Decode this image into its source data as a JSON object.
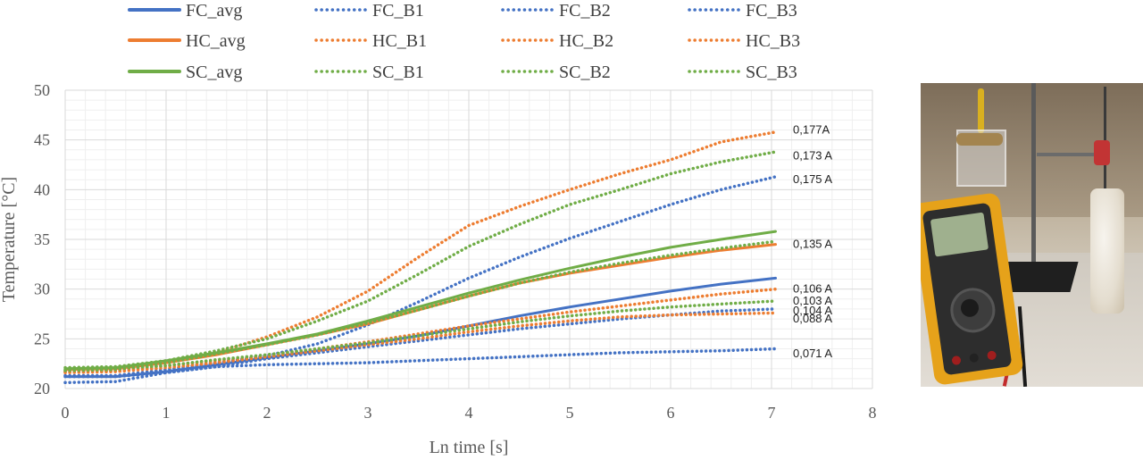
{
  "chart_data": {
    "type": "line",
    "xlabel": "Ln time [s]",
    "ylabel": "Temperature [°C]",
    "xlim": [
      0,
      8
    ],
    "ylim": [
      20,
      50
    ],
    "xticks": [
      0,
      1,
      2,
      3,
      4,
      5,
      6,
      7,
      8
    ],
    "yticks": [
      20,
      25,
      30,
      35,
      40,
      45,
      50
    ],
    "grid": true,
    "legend_position": "top",
    "colors": {
      "FC": "#4472C4",
      "HC": "#ED7D31",
      "SC": "#70AD47"
    },
    "series": [
      {
        "name": "FC_avg",
        "group": "FC",
        "style": "solid",
        "x": [
          0,
          0.5,
          1,
          1.5,
          2,
          2.5,
          3,
          3.5,
          4,
          4.5,
          5,
          5.5,
          6,
          6.5,
          7.04
        ],
        "y": [
          21.2,
          21.2,
          21.7,
          22.4,
          23.1,
          23.8,
          24.5,
          25.3,
          26.3,
          27.3,
          28.2,
          29.0,
          29.8,
          30.5,
          31.1
        ]
      },
      {
        "name": "FC_B1",
        "group": "FC",
        "style": "dotted",
        "x": [
          0,
          0.5,
          1,
          1.5,
          2,
          2.5,
          3,
          3.5,
          4,
          4.5,
          5,
          5.5,
          6,
          6.5,
          7.04
        ],
        "y": [
          20.6,
          20.7,
          21.6,
          22.2,
          22.4,
          22.5,
          22.6,
          22.8,
          23.0,
          23.2,
          23.4,
          23.6,
          23.7,
          23.8,
          24.0
        ]
      },
      {
        "name": "FC_B2",
        "group": "FC",
        "style": "dotted",
        "x": [
          0,
          0.5,
          1,
          1.5,
          2,
          2.5,
          3,
          3.5,
          4,
          4.5,
          5,
          5.5,
          6,
          6.5,
          7.04
        ],
        "y": [
          21.3,
          21.3,
          21.9,
          22.6,
          23.3,
          24.5,
          26.4,
          28.7,
          31.1,
          33.2,
          35.1,
          36.8,
          38.5,
          40.0,
          41.3
        ]
      },
      {
        "name": "FC_B3",
        "group": "FC",
        "style": "dotted",
        "x": [
          0,
          0.5,
          1,
          1.5,
          2,
          2.5,
          3,
          3.5,
          4,
          4.5,
          5,
          5.5,
          6,
          6.5,
          7.04
        ],
        "y": [
          21.2,
          21.2,
          21.6,
          22.2,
          23.0,
          23.6,
          24.2,
          24.8,
          25.4,
          26.0,
          26.5,
          27.0,
          27.4,
          27.8,
          28.0
        ]
      },
      {
        "name": "HC_avg",
        "group": "HC",
        "style": "solid",
        "x": [
          0,
          0.5,
          1,
          1.5,
          2,
          2.5,
          3,
          3.5,
          4,
          4.5,
          5,
          5.5,
          6,
          6.5,
          7.04
        ],
        "y": [
          21.9,
          22.0,
          22.6,
          23.4,
          24.4,
          25.4,
          26.5,
          27.9,
          29.3,
          30.6,
          31.6,
          32.4,
          33.2,
          33.9,
          34.5
        ]
      },
      {
        "name": "HC_B1",
        "group": "HC",
        "style": "dotted",
        "x": [
          0,
          0.5,
          1,
          1.5,
          2,
          2.5,
          3,
          3.5,
          4,
          4.5,
          5,
          5.5,
          6,
          6.5,
          7.04
        ],
        "y": [
          21.7,
          21.8,
          22.6,
          23.6,
          25.2,
          27.2,
          29.8,
          33.2,
          36.4,
          38.3,
          40.0,
          41.6,
          43.0,
          44.8,
          45.8
        ]
      },
      {
        "name": "HC_B2",
        "group": "HC",
        "style": "dotted",
        "x": [
          0,
          0.5,
          1,
          1.5,
          2,
          2.5,
          3,
          3.5,
          4,
          4.5,
          5,
          5.5,
          6,
          6.5,
          7.04
        ],
        "y": [
          21.7,
          21.8,
          22.3,
          22.8,
          23.3,
          24.0,
          24.7,
          25.5,
          26.3,
          27.0,
          27.7,
          28.3,
          28.9,
          29.5,
          30.0
        ]
      },
      {
        "name": "HC_B3",
        "group": "HC",
        "style": "dotted",
        "x": [
          0,
          0.5,
          1,
          1.5,
          2,
          2.5,
          3,
          3.5,
          4,
          4.5,
          5,
          5.5,
          6,
          6.5,
          7.04
        ],
        "y": [
          21.6,
          21.7,
          22.1,
          22.6,
          23.2,
          23.8,
          24.4,
          25.0,
          25.7,
          26.3,
          26.8,
          27.2,
          27.4,
          27.5,
          27.6
        ]
      },
      {
        "name": "SC_avg",
        "group": "SC",
        "style": "solid",
        "x": [
          0,
          0.5,
          1,
          1.5,
          2,
          2.5,
          3,
          3.5,
          4,
          4.5,
          5,
          5.5,
          6,
          6.5,
          7.04
        ],
        "y": [
          22.0,
          22.1,
          22.8,
          23.6,
          24.5,
          25.5,
          26.8,
          28.2,
          29.6,
          30.9,
          32.1,
          33.2,
          34.2,
          35.0,
          35.8
        ]
      },
      {
        "name": "SC_B1",
        "group": "SC",
        "style": "dotted",
        "x": [
          0,
          0.5,
          1,
          1.5,
          2,
          2.5,
          3,
          3.5,
          4,
          4.5,
          5,
          5.5,
          6,
          6.5,
          7.04
        ],
        "y": [
          22.1,
          22.2,
          22.8,
          23.8,
          25.0,
          26.8,
          28.8,
          31.5,
          34.3,
          36.5,
          38.5,
          40.0,
          41.6,
          42.8,
          43.8
        ]
      },
      {
        "name": "SC_B2",
        "group": "SC",
        "style": "dotted",
        "x": [
          0,
          0.5,
          1,
          1.5,
          2,
          2.5,
          3,
          3.5,
          4,
          4.5,
          5,
          5.5,
          6,
          6.5,
          7.04
        ],
        "y": [
          21.8,
          21.9,
          22.6,
          23.5,
          24.4,
          25.4,
          26.6,
          27.9,
          29.3,
          30.6,
          31.7,
          32.6,
          33.4,
          34.1,
          34.8
        ]
      },
      {
        "name": "SC_B3",
        "group": "SC",
        "style": "dotted",
        "x": [
          0,
          0.5,
          1,
          1.5,
          2,
          2.5,
          3,
          3.5,
          4,
          4.5,
          5,
          5.5,
          6,
          6.5,
          7.04
        ],
        "y": [
          21.9,
          22.0,
          22.3,
          22.9,
          23.4,
          24.0,
          24.6,
          25.3,
          26.0,
          26.7,
          27.3,
          27.8,
          28.2,
          28.5,
          28.8
        ]
      }
    ],
    "annotations": [
      {
        "text": "0,177A",
        "y": 46.1
      },
      {
        "text": "0,173 A",
        "y": 43.5
      },
      {
        "text": "0,175 A",
        "y": 41.1
      },
      {
        "text": "0,135 A",
        "y": 34.6
      },
      {
        "text": "0,106 A",
        "y": 30.1
      },
      {
        "text": "0,103 A",
        "y": 28.9
      },
      {
        "text": "0,104 A",
        "y": 27.9
      },
      {
        "text": "0,088 A",
        "y": 27.1
      },
      {
        "text": "0,071 A",
        "y": 23.6
      }
    ]
  }
}
